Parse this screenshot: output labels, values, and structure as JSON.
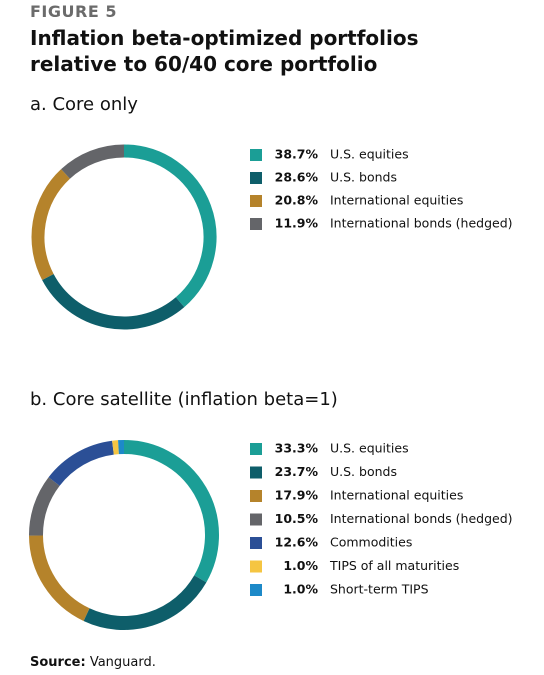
{
  "figure_label": "FIGURE 5",
  "title": "Inflation beta-optimized portfolios relative to 60/40 core portfolio",
  "source_label": "Source:",
  "source": "Vanguard.",
  "chart_data": [
    {
      "type": "donut",
      "title": "a. Core only",
      "categories": [
        "U.S. equities",
        "U.S. bonds",
        "International equities",
        "International bonds (hedged)"
      ],
      "values": [
        38.7,
        28.6,
        20.8,
        11.9
      ],
      "value_labels": [
        "38.7%",
        "28.6%",
        "20.8%",
        "11.9%"
      ],
      "colors": [
        "#1b9e96",
        "#0e5e6a",
        "#b5832b",
        "#646569"
      ]
    },
    {
      "type": "donut",
      "title": "b. Core satellite (inflation beta=1)",
      "categories": [
        "U.S. equities",
        "U.S. bonds",
        "International equities",
        "International bonds (hedged)",
        "Commodities",
        "TIPS of all maturities",
        "Short-term TIPS"
      ],
      "values": [
        33.3,
        23.7,
        17.9,
        10.5,
        12.6,
        1.0,
        1.0
      ],
      "value_labels": [
        "33.3%",
        "23.7%",
        "17.9%",
        "10.5%",
        "12.6%",
        "1.0%",
        "1.0%"
      ],
      "colors": [
        "#1b9e96",
        "#0e5e6a",
        "#b5832b",
        "#646569",
        "#2b4f96",
        "#f5c542",
        "#1d89c8"
      ]
    }
  ]
}
